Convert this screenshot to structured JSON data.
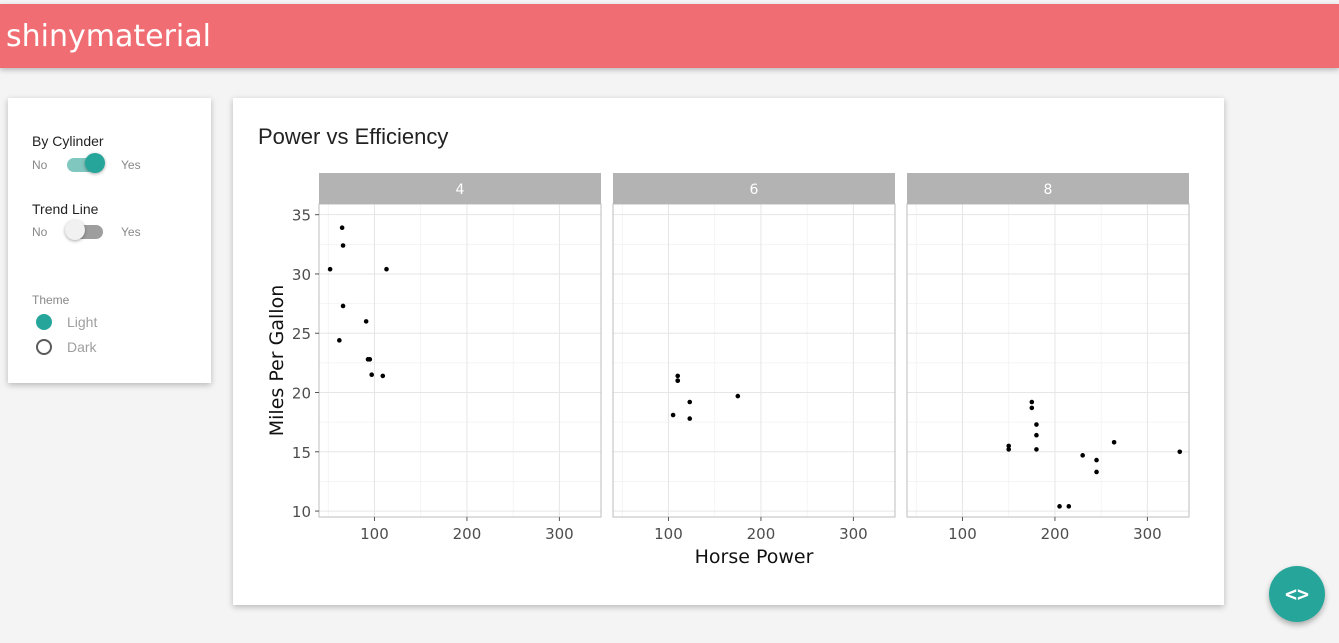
{
  "app": {
    "title": "shinymaterial"
  },
  "sidebar": {
    "by_cylinder": {
      "label": "By Cylinder",
      "off": "No",
      "on": "Yes",
      "checked": true
    },
    "trend_line": {
      "label": "Trend Line",
      "off": "No",
      "on": "Yes",
      "checked": false
    },
    "theme": {
      "label": "Theme",
      "options": [
        {
          "label": "Light",
          "checked": true
        },
        {
          "label": "Dark",
          "checked": false
        }
      ]
    }
  },
  "fab": {
    "icon": "code-icon",
    "glyph": "<>"
  },
  "chart_data": {
    "type": "scatter",
    "title": "Power vs Efficiency",
    "xlabel": "Horse Power",
    "ylabel": "Miles Per Gallon",
    "xlim": [
      40,
      345
    ],
    "ylim": [
      9.5,
      35.9
    ],
    "xticks": [
      100,
      200,
      300
    ],
    "yticks": [
      10,
      15,
      20,
      25,
      30,
      35
    ],
    "grid": true,
    "facets": [
      {
        "name": "4",
        "points": [
          [
            93,
            22.8
          ],
          [
            62,
            24.4
          ],
          [
            95,
            22.8
          ],
          [
            66,
            32.4
          ],
          [
            52,
            30.4
          ],
          [
            65,
            33.9
          ],
          [
            97,
            21.5
          ],
          [
            66,
            27.3
          ],
          [
            91,
            26.0
          ],
          [
            113,
            30.4
          ],
          [
            109,
            21.4
          ]
        ]
      },
      {
        "name": "6",
        "points": [
          [
            110,
            21.0
          ],
          [
            110,
            21.0
          ],
          [
            110,
            21.4
          ],
          [
            105,
            18.1
          ],
          [
            123,
            19.2
          ],
          [
            123,
            17.8
          ],
          [
            175,
            19.7
          ]
        ]
      },
      {
        "name": "8",
        "points": [
          [
            175,
            18.7
          ],
          [
            245,
            14.3
          ],
          [
            180,
            16.4
          ],
          [
            180,
            17.3
          ],
          [
            180,
            15.2
          ],
          [
            205,
            10.4
          ],
          [
            215,
            10.4
          ],
          [
            230,
            14.7
          ],
          [
            150,
            15.5
          ],
          [
            150,
            15.2
          ],
          [
            245,
            13.3
          ],
          [
            175,
            19.2
          ],
          [
            264,
            15.8
          ],
          [
            335,
            15.0
          ]
        ]
      }
    ]
  }
}
